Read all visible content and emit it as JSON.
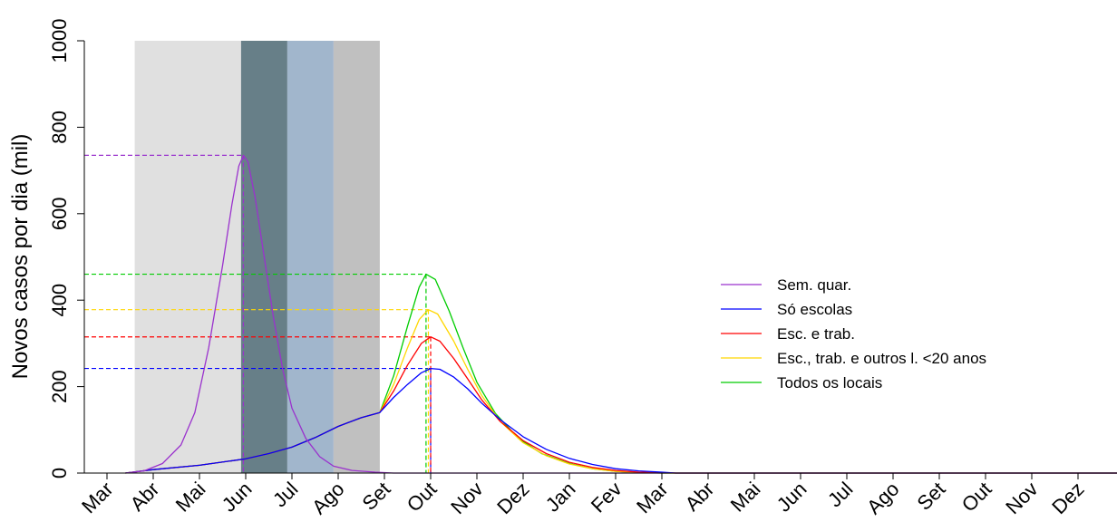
{
  "chart_data": {
    "type": "line",
    "ylabel": "Novos casos por dia (mil)",
    "ylim": [
      0,
      1000
    ],
    "yticks": [
      0,
      200,
      400,
      600,
      800,
      1000
    ],
    "xlim": [
      0,
      22.3
    ],
    "x_ticks": [
      {
        "x": 0,
        "label": "Mar"
      },
      {
        "x": 1,
        "label": "Abr"
      },
      {
        "x": 2,
        "label": "Mai"
      },
      {
        "x": 3,
        "label": "Jun"
      },
      {
        "x": 4,
        "label": "Jul"
      },
      {
        "x": 5,
        "label": "Ago"
      },
      {
        "x": 6,
        "label": "Set"
      },
      {
        "x": 7,
        "label": "Out"
      },
      {
        "x": 8,
        "label": "Nov"
      },
      {
        "x": 9,
        "label": "Dez"
      },
      {
        "x": 10,
        "label": "Jan"
      },
      {
        "x": 11,
        "label": "Fev"
      },
      {
        "x": 12,
        "label": "Mar"
      },
      {
        "x": 13,
        "label": "Abr"
      },
      {
        "x": 14,
        "label": "Mai"
      },
      {
        "x": 15,
        "label": "Jun"
      },
      {
        "x": 16,
        "label": "Jul"
      },
      {
        "x": 17,
        "label": "Ago"
      },
      {
        "x": 18,
        "label": "Set"
      },
      {
        "x": 19,
        "label": "Out"
      },
      {
        "x": 20,
        "label": "Nov"
      },
      {
        "x": 21,
        "label": "Dez"
      }
    ],
    "shaded_regions": [
      {
        "from": 0.6,
        "to": 2.9,
        "color": "#e0e0e0"
      },
      {
        "from": 2.9,
        "to": 3.9,
        "color": "#677f88"
      },
      {
        "from": 3.9,
        "to": 4.9,
        "color": "#a1b6cc"
      },
      {
        "from": 4.9,
        "to": 5.9,
        "color": "#c0c0c0"
      }
    ],
    "series": [
      {
        "name": "Sem. quar.",
        "color": "#9a32cd",
        "points": [
          [
            0.4,
            0
          ],
          [
            0.8,
            5
          ],
          [
            1.2,
            22
          ],
          [
            1.6,
            65
          ],
          [
            1.9,
            140
          ],
          [
            2.2,
            290
          ],
          [
            2.5,
            480
          ],
          [
            2.7,
            620
          ],
          [
            2.85,
            710
          ],
          [
            2.95,
            735
          ],
          [
            3.05,
            720
          ],
          [
            3.2,
            640
          ],
          [
            3.4,
            500
          ],
          [
            3.6,
            360
          ],
          [
            3.8,
            240
          ],
          [
            4.0,
            150
          ],
          [
            4.3,
            80
          ],
          [
            4.6,
            38
          ],
          [
            4.9,
            16
          ],
          [
            5.3,
            6
          ],
          [
            5.8,
            2
          ],
          [
            6.2,
            0
          ],
          [
            22.3,
            0
          ]
        ],
        "peak": {
          "x": 2.95,
          "y": 735
        }
      },
      {
        "name": "Só escolas",
        "color": "#0000ff",
        "points": [
          [
            0.4,
            0
          ],
          [
            1,
            8
          ],
          [
            2,
            18
          ],
          [
            3,
            33
          ],
          [
            3.5,
            45
          ],
          [
            4,
            60
          ],
          [
            4.5,
            82
          ],
          [
            5,
            108
          ],
          [
            5.5,
            128
          ],
          [
            5.9,
            140
          ],
          [
            6.2,
            175
          ],
          [
            6.5,
            205
          ],
          [
            6.8,
            232
          ],
          [
            7.0,
            242
          ],
          [
            7.2,
            240
          ],
          [
            7.5,
            222
          ],
          [
            7.8,
            195
          ],
          [
            8.1,
            162
          ],
          [
            8.5,
            124
          ],
          [
            9,
            84
          ],
          [
            9.5,
            55
          ],
          [
            10,
            34
          ],
          [
            10.5,
            20
          ],
          [
            11,
            10
          ],
          [
            11.5,
            5
          ],
          [
            12,
            2
          ],
          [
            12.3,
            0
          ],
          [
            22.3,
            0
          ]
        ],
        "peak": {
          "x": 7.0,
          "y": 242
        }
      },
      {
        "name": "Esc. e trab.",
        "color": "#ff0000",
        "points": [
          [
            0.4,
            0
          ],
          [
            1,
            8
          ],
          [
            2,
            18
          ],
          [
            3,
            33
          ],
          [
            3.5,
            45
          ],
          [
            4,
            60
          ],
          [
            4.5,
            82
          ],
          [
            5,
            108
          ],
          [
            5.5,
            128
          ],
          [
            5.9,
            140
          ],
          [
            6.2,
            190
          ],
          [
            6.5,
            250
          ],
          [
            6.8,
            300
          ],
          [
            7.0,
            315
          ],
          [
            7.2,
            305
          ],
          [
            7.5,
            265
          ],
          [
            7.8,
            218
          ],
          [
            8.1,
            170
          ],
          [
            8.5,
            120
          ],
          [
            9,
            75
          ],
          [
            9.5,
            45
          ],
          [
            10,
            25
          ],
          [
            10.5,
            13
          ],
          [
            11,
            6
          ],
          [
            11.5,
            2
          ],
          [
            12,
            1
          ],
          [
            12.3,
            0
          ],
          [
            22.3,
            0
          ]
        ],
        "peak": {
          "x": 7.0,
          "y": 315
        }
      },
      {
        "name": "Esc., trab. e outros l. <20 anos",
        "color": "#ffd700",
        "points": [
          [
            0.4,
            0
          ],
          [
            1,
            8
          ],
          [
            2,
            18
          ],
          [
            3,
            33
          ],
          [
            3.5,
            45
          ],
          [
            4,
            60
          ],
          [
            4.5,
            82
          ],
          [
            5,
            108
          ],
          [
            5.5,
            128
          ],
          [
            5.9,
            140
          ],
          [
            6.2,
            205
          ],
          [
            6.5,
            290
          ],
          [
            6.75,
            355
          ],
          [
            6.95,
            378
          ],
          [
            7.15,
            368
          ],
          [
            7.5,
            305
          ],
          [
            7.8,
            240
          ],
          [
            8.1,
            180
          ],
          [
            8.5,
            120
          ],
          [
            9,
            70
          ],
          [
            9.5,
            40
          ],
          [
            10,
            21
          ],
          [
            10.5,
            10
          ],
          [
            11,
            4
          ],
          [
            11.5,
            1
          ],
          [
            12,
            0
          ],
          [
            22.3,
            0
          ]
        ],
        "peak": {
          "x": 6.95,
          "y": 378
        }
      },
      {
        "name": "Todos os locais",
        "color": "#00cc00",
        "points": [
          [
            0.4,
            0
          ],
          [
            1,
            8
          ],
          [
            2,
            18
          ],
          [
            3,
            33
          ],
          [
            3.5,
            45
          ],
          [
            4,
            60
          ],
          [
            4.5,
            82
          ],
          [
            5,
            108
          ],
          [
            5.5,
            128
          ],
          [
            5.9,
            140
          ],
          [
            6.2,
            225
          ],
          [
            6.5,
            340
          ],
          [
            6.75,
            430
          ],
          [
            6.9,
            460
          ],
          [
            7.1,
            448
          ],
          [
            7.4,
            375
          ],
          [
            7.7,
            290
          ],
          [
            8.0,
            210
          ],
          [
            8.4,
            138
          ],
          [
            8.9,
            80
          ],
          [
            9.4,
            45
          ],
          [
            10,
            22
          ],
          [
            10.5,
            10
          ],
          [
            11,
            4
          ],
          [
            11.5,
            1
          ],
          [
            12,
            0
          ],
          [
            22.3,
            0
          ]
        ],
        "peak": {
          "x": 6.9,
          "y": 460
        }
      }
    ],
    "legend_position": "right",
    "grid": false
  }
}
